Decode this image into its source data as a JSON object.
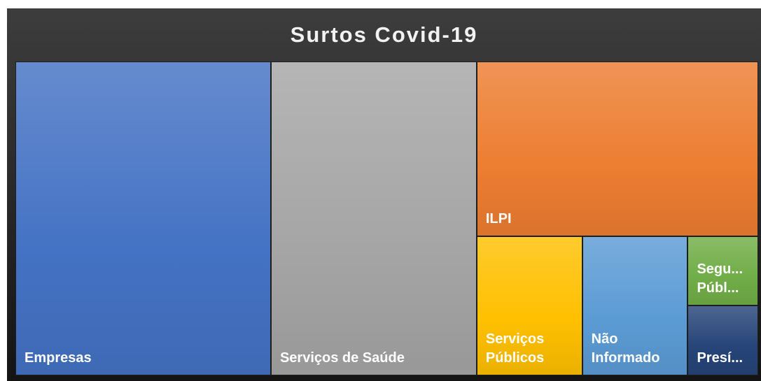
{
  "chart_data": {
    "type": "treemap",
    "title": "Surtos Covid-19",
    "categories": [
      "Empresas",
      "Serviços de Saúde",
      "ILPI",
      "Serviços Públicos",
      "Não Informado",
      "Segu... Públ...",
      "Presí..."
    ],
    "values": [
      344,
      277,
      211,
      63,
      63,
      21,
      21
    ],
    "colors": [
      "#4472c4",
      "#a5a5a5",
      "#ed7d31",
      "#ffc000",
      "#5b9bd5",
      "#70ad47",
      "#264478"
    ]
  }
}
